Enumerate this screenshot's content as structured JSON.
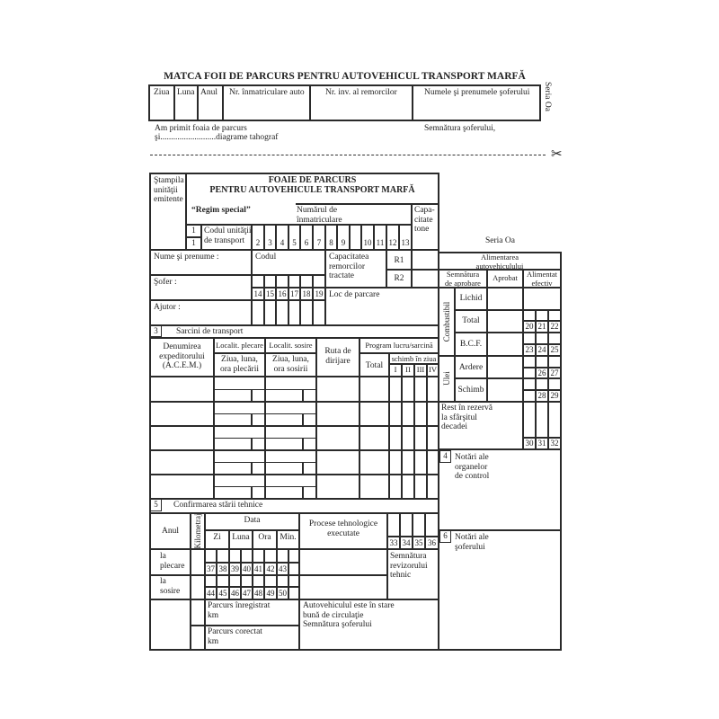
{
  "stub": {
    "title": "MATCA FOII DE PARCURS PENTRU AUTOVEHICUL TRANSPORT MARFĂ",
    "columns": [
      "Ziua",
      "Luna",
      "Anul",
      "Nr. înmatriculare auto",
      "Nr. inv. al remorcilor",
      "Numele şi prenumele şoferului"
    ],
    "series": "Seria Oa",
    "received_line1": "Am primit foaia de parcurs",
    "received_line2": "şi..........................diagrame tahograf",
    "driver_signature": "Semnătura şoferului,",
    "cut_icon": "scissors-icon"
  },
  "header": {
    "stamp": "Ştampila\nunităţii\nemitente",
    "title1": "FOAIE DE PARCURS",
    "title2": "PENTRU AUTOVEHICULE TRANSPORT MARFĂ",
    "regime": "“Regim special”",
    "plate_number": "Numărul de\nînmatriculare",
    "capacity": "Capa-\ncitate\ntone",
    "box1": "1",
    "unit_code": "Codul unităţii\nde transport",
    "series": "Seria Oa"
  },
  "crew": {
    "name": "Nume şi prenume :",
    "code": "Codul",
    "trailer_capacity": "Capacitatea\nremorcilor\ntractate",
    "r1": "R1",
    "r2": "R2",
    "driver": "Şofer :",
    "helper": "Ajutor :",
    "parking": "Loc de parcare"
  },
  "tasks": {
    "number": "3",
    "title": "Sarcini de transport",
    "col_sender": "Denumirea\nexpeditorului\n(A.C.E.M.)",
    "col_departure_place": "Localit. plecare",
    "col_arrival_place": "Localit. sosire",
    "col_departure_time": "Ziua, luna,\nora plecării",
    "col_arrival_time": "Ziua, luna,\nora sosirii",
    "col_route": "Ruta de\ndirijare",
    "col_program": "Program lucru/sarcină",
    "col_total": "Total",
    "col_shift": "schimb în ziua",
    "shifts": [
      "I",
      "II",
      "III",
      "IV"
    ]
  },
  "technical": {
    "number": "5",
    "title": "Confirmarea stării tehnice",
    "year": "Anul",
    "mileage": "Kilometraj",
    "date": "Data",
    "day": "Zi",
    "month": "Luna",
    "hour": "Ora",
    "minute": "Min.",
    "processes": "Procese tehnologice\nexecutate",
    "at_departure": "la\nplecare",
    "at_arrival": "la\nsosire",
    "inspector_signature": "Semnătura\nrevizorului\ntehnic",
    "recorded_km": "Parcurs înregistrat\nkm",
    "corrected_km": "Parcurs corectat\nkm",
    "vehicle_ok": "Autovehiculul este în stare\nbună de circulaţie\nSemnătura şoferului"
  },
  "fuel": {
    "title": "Alimentarea\nautovehiculului",
    "approval_signature": "Semnătura\nde aprobare",
    "approved": "Aprobat",
    "actual": "Alimentat\nefectiv",
    "fuel_group": "Combustibil",
    "oil_group": "Ulei",
    "liquid": "Lichid",
    "total": "Total",
    "bcf": "B.C.F.",
    "burn": "Ardere",
    "change": "Schimb",
    "reserve": "Rest în rezervă\nla sfârşitul\ndecadei"
  },
  "notes": {
    "control_number": "4",
    "control": "Notări ale\norganelor\nde control",
    "driver_number": "6",
    "driver": "Notări ale\nşoferului"
  },
  "codes": {
    "unit_code": [
      "2",
      "3",
      "4",
      "5",
      "6",
      "7",
      "8",
      "9",
      "",
      "10",
      "11",
      "12",
      "13"
    ],
    "driver_code": [
      "14",
      "15",
      "16",
      "17",
      "18",
      "19"
    ],
    "fuel_total": [
      "20",
      "21",
      "22"
    ],
    "fuel_bcf": [
      "23",
      "24",
      "25"
    ],
    "oil_burn": [
      "",
      "26",
      "27"
    ],
    "oil_change": [
      "",
      "28",
      "29"
    ],
    "reserve": [
      "30",
      "31",
      "32"
    ],
    "processes": [
      "33",
      "34",
      "35",
      "36"
    ],
    "departure": [
      "37",
      "38",
      "39",
      "40",
      "41",
      "42",
      "43"
    ],
    "arrival": [
      "44",
      "45",
      "46",
      "47",
      "48",
      "49",
      "50"
    ]
  }
}
